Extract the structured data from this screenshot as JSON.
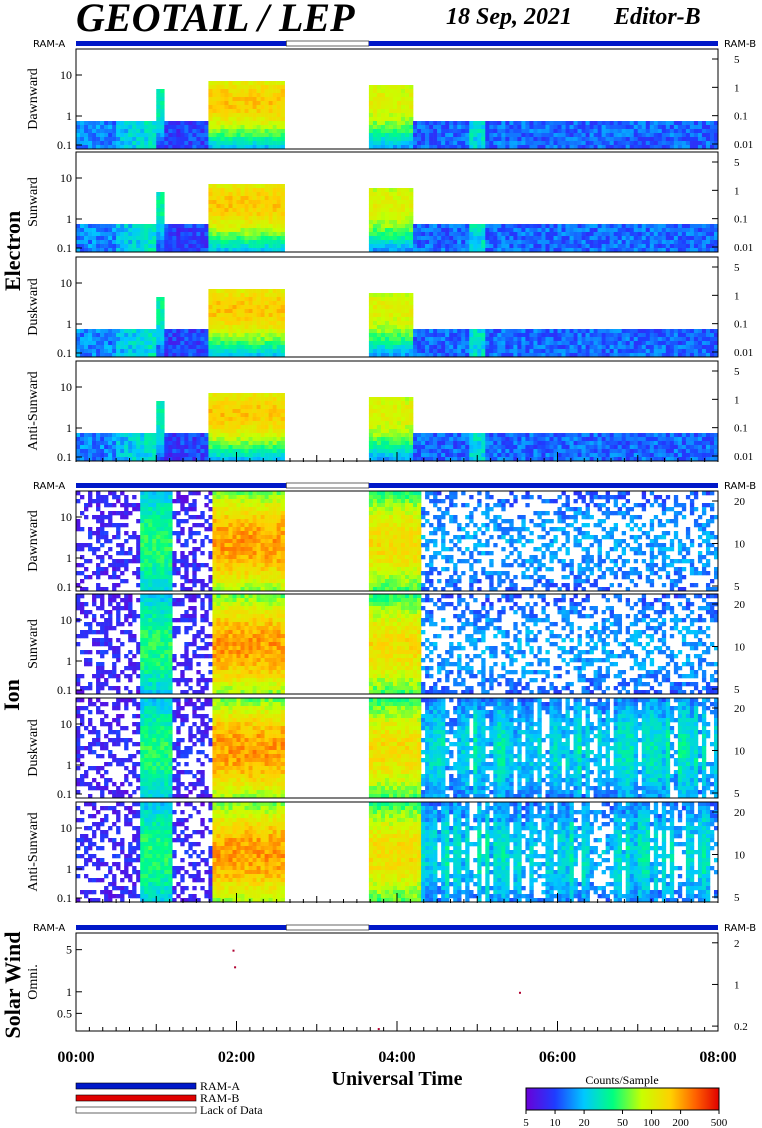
{
  "header": {
    "title": "GEOTAIL / LEP",
    "date": "18 Sep, 2021",
    "editor": "Editor-B"
  },
  "colors": {
    "ram_a": "#0018c8",
    "ram_b": "#e00000",
    "lack": "#ffffff"
  },
  "groups": {
    "electron": "Electron",
    "ion": "Ion",
    "solar_wind": "Solar Wind"
  },
  "labels": {
    "ram_a": "RAM-A",
    "ram_b": "RAM-B"
  },
  "xaxis": {
    "label": "Universal Time",
    "ticks": [
      "00:00",
      "02:00",
      "04:00",
      "06:00",
      "08:00"
    ]
  },
  "legend": {
    "ram_a": "RAM-A",
    "ram_b": "RAM-B",
    "lack": "Lack of Data"
  },
  "colorbar": {
    "title": "Counts/Sample",
    "ticks": [
      "5",
      "10",
      "20",
      "50",
      "100",
      "200",
      "500"
    ]
  },
  "chart_data": {
    "type": "heatmap",
    "x_range_hours": [
      0,
      8
    ],
    "mode_bar": [
      {
        "mode": "RAM-A",
        "start": 0.0,
        "end": 2.62
      },
      {
        "mode": "Lack of Data",
        "start": 2.62,
        "end": 3.65
      },
      {
        "mode": "RAM-A",
        "start": 3.65,
        "end": 8.0
      }
    ],
    "panels": [
      {
        "group": "Electron",
        "ylabel": "Dawnward",
        "y_ticks": [
          "10",
          "1",
          "0.1"
        ],
        "right_ticks": [
          "5",
          "1",
          "0.1",
          "0.01"
        ]
      },
      {
        "group": "Electron",
        "ylabel": "Sunward",
        "y_ticks": [
          "10",
          "1",
          "0.1"
        ],
        "right_ticks": [
          "5",
          "1",
          "0.1",
          "0.01"
        ]
      },
      {
        "group": "Electron",
        "ylabel": "Duskward",
        "y_ticks": [
          "10",
          "1",
          "0.1"
        ],
        "right_ticks": [
          "5",
          "1",
          "0.1",
          "0.01"
        ]
      },
      {
        "group": "Electron",
        "ylabel": "Anti-Sunward",
        "y_ticks": [
          "10",
          "1",
          "0.1"
        ],
        "right_ticks": [
          "5",
          "1",
          "0.1",
          "0.01"
        ]
      },
      {
        "group": "Ion",
        "ylabel": "Dawnward",
        "y_ticks": [
          "10",
          "1",
          "0.1"
        ],
        "right_ticks": [
          "20",
          "10",
          "5"
        ]
      },
      {
        "group": "Ion",
        "ylabel": "Sunward",
        "y_ticks": [
          "10",
          "1",
          "0.1"
        ],
        "right_ticks": [
          "20",
          "10",
          "5"
        ]
      },
      {
        "group": "Ion",
        "ylabel": "Duskward",
        "y_ticks": [
          "10",
          "1",
          "0.1"
        ],
        "right_ticks": [
          "20",
          "10",
          "5"
        ]
      },
      {
        "group": "Ion",
        "ylabel": "Anti-Sunward",
        "y_ticks": [
          "10",
          "1",
          "0.1"
        ],
        "right_ticks": [
          "20",
          "10",
          "5"
        ]
      },
      {
        "group": "Solar Wind",
        "ylabel": "Omni.",
        "y_ticks": [
          "5",
          "1",
          "0.5"
        ],
        "right_ticks": [
          "2",
          "1",
          "0.2"
        ]
      }
    ]
  }
}
